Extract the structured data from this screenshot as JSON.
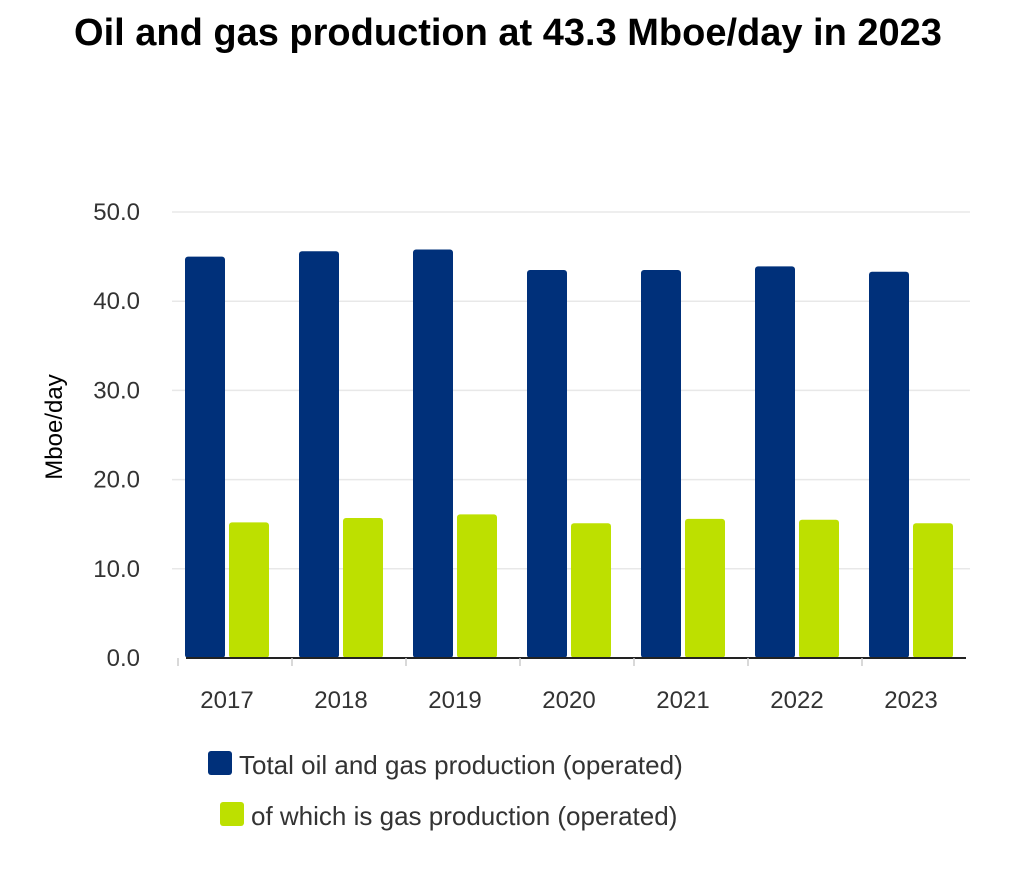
{
  "chart_data": {
    "type": "bar",
    "title": "Oil and gas production at 43.3 Mboe/day in 2023",
    "ylabel": "Mboe/day",
    "xlabel": "",
    "categories": [
      "2017",
      "2018",
      "2019",
      "2020",
      "2021",
      "2022",
      "2023"
    ],
    "y_ticks": [
      "0.0",
      "10.0",
      "20.0",
      "30.0",
      "40.0",
      "50.0"
    ],
    "ylim": [
      0,
      50
    ],
    "grid": true,
    "legend_position": "bottom",
    "series": [
      {
        "name": "Total oil and gas production (operated)",
        "color": "#00307a",
        "values": [
          45.0,
          45.6,
          45.8,
          43.5,
          43.5,
          43.9,
          43.3
        ]
      },
      {
        "name": "of which is gas production (operated)",
        "color": "#bde000",
        "values": [
          15.2,
          15.7,
          16.1,
          15.1,
          15.6,
          15.5,
          15.1
        ]
      }
    ]
  }
}
